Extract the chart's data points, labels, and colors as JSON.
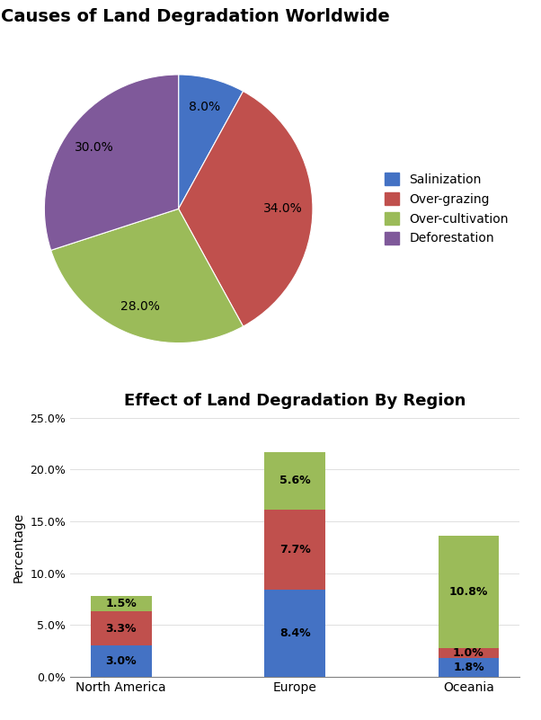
{
  "pie_title": "Causes of Land Degradation Worldwide",
  "pie_labels": [
    "Salinization",
    "Over-grazing",
    "Over-cultivation",
    "Deforestation"
  ],
  "pie_values": [
    8.0,
    34.0,
    28.0,
    30.0
  ],
  "pie_colors": [
    "#4472C4",
    "#C0504D",
    "#9BBB59",
    "#7F599A"
  ],
  "pie_startangle": 90,
  "bar_title": "Effect of Land Degradation By Region",
  "bar_categories": [
    "North America",
    "Europe",
    "Oceania"
  ],
  "bar_series": {
    "Deforestation": [
      3.0,
      8.4,
      1.8
    ],
    "Over-cultivation": [
      3.3,
      7.7,
      1.0
    ],
    "Over-grazing": [
      1.5,
      5.6,
      10.8
    ]
  },
  "bar_colors": {
    "Deforestation": "#4472C4",
    "Over-cultivation": "#C0504D",
    "Over-grazing": "#9BBB59"
  },
  "bar_ylabel": "Percentage",
  "bar_ylim": [
    0,
    25
  ],
  "bar_yticks": [
    0,
    5,
    10,
    15,
    20,
    25
  ],
  "bar_ytick_labels": [
    "0.0%",
    "5.0%",
    "10.0%",
    "15.0%",
    "20.0%",
    "25.0%"
  ],
  "bar_width": 0.35,
  "bg_color": "#ffffff"
}
